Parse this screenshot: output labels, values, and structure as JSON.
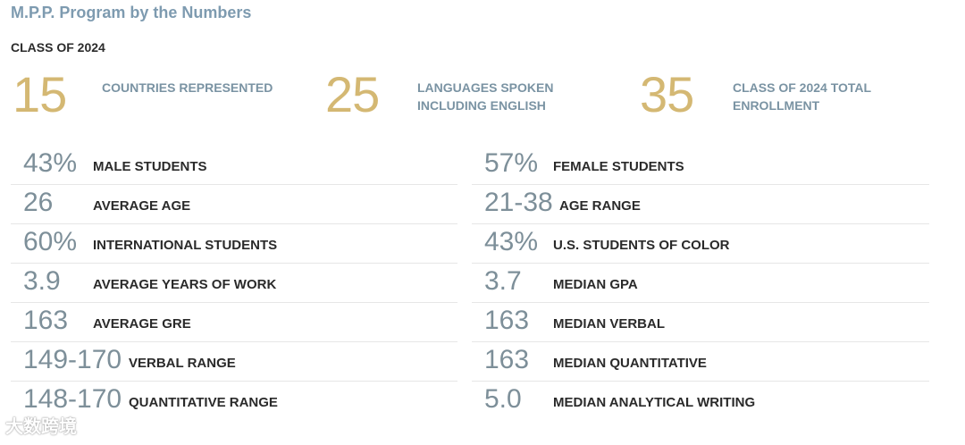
{
  "header": {
    "title": "M.P.P. Program by the Numbers",
    "class_label": "CLASS OF 2024"
  },
  "highlights": [
    {
      "value": "15",
      "label_line1": "COUNTRIES REPRESENTED",
      "label_line2": ""
    },
    {
      "value": "25",
      "label_line1": "LANGUAGES SPOKEN",
      "label_line2": "INCLUDING ENGLISH"
    },
    {
      "value": "35",
      "label_line1": "CLASS OF 2024 TOTAL",
      "label_line2": "ENROLLMENT"
    }
  ],
  "left_stats": [
    {
      "value": "43%",
      "label": "MALE STUDENTS"
    },
    {
      "value": "26",
      "label": "AVERAGE AGE"
    },
    {
      "value": "60%",
      "label": "INTERNATIONAL STUDENTS"
    },
    {
      "value": "3.9",
      "label": "AVERAGE YEARS OF WORK"
    },
    {
      "value": "163",
      "label": "AVERAGE GRE"
    },
    {
      "value": "149-170",
      "label": "VERBAL RANGE"
    },
    {
      "value": "148-170",
      "label": "QUANTITATIVE RANGE"
    }
  ],
  "right_stats": [
    {
      "value": "57%",
      "label": "FEMALE STUDENTS"
    },
    {
      "value": "21-38",
      "label": "AGE RANGE"
    },
    {
      "value": "43%",
      "label": "U.S. STUDENTS OF COLOR"
    },
    {
      "value": "3.7",
      "label": "MEDIAN GPA"
    },
    {
      "value": "163",
      "label": "MEDIAN VERBAL"
    },
    {
      "value": "163",
      "label": "MEDIAN QUANTITATIVE"
    },
    {
      "value": "5.0",
      "label": "MEDIAN ANALYTICAL WRITING"
    }
  ],
  "watermark": "大数跨境",
  "colors": {
    "title": "#7e9bb0",
    "highlight_number": "#d4b873",
    "highlight_label": "#7a93a3",
    "stat_value": "#7d8f99",
    "stat_label": "#2a2a2a"
  }
}
